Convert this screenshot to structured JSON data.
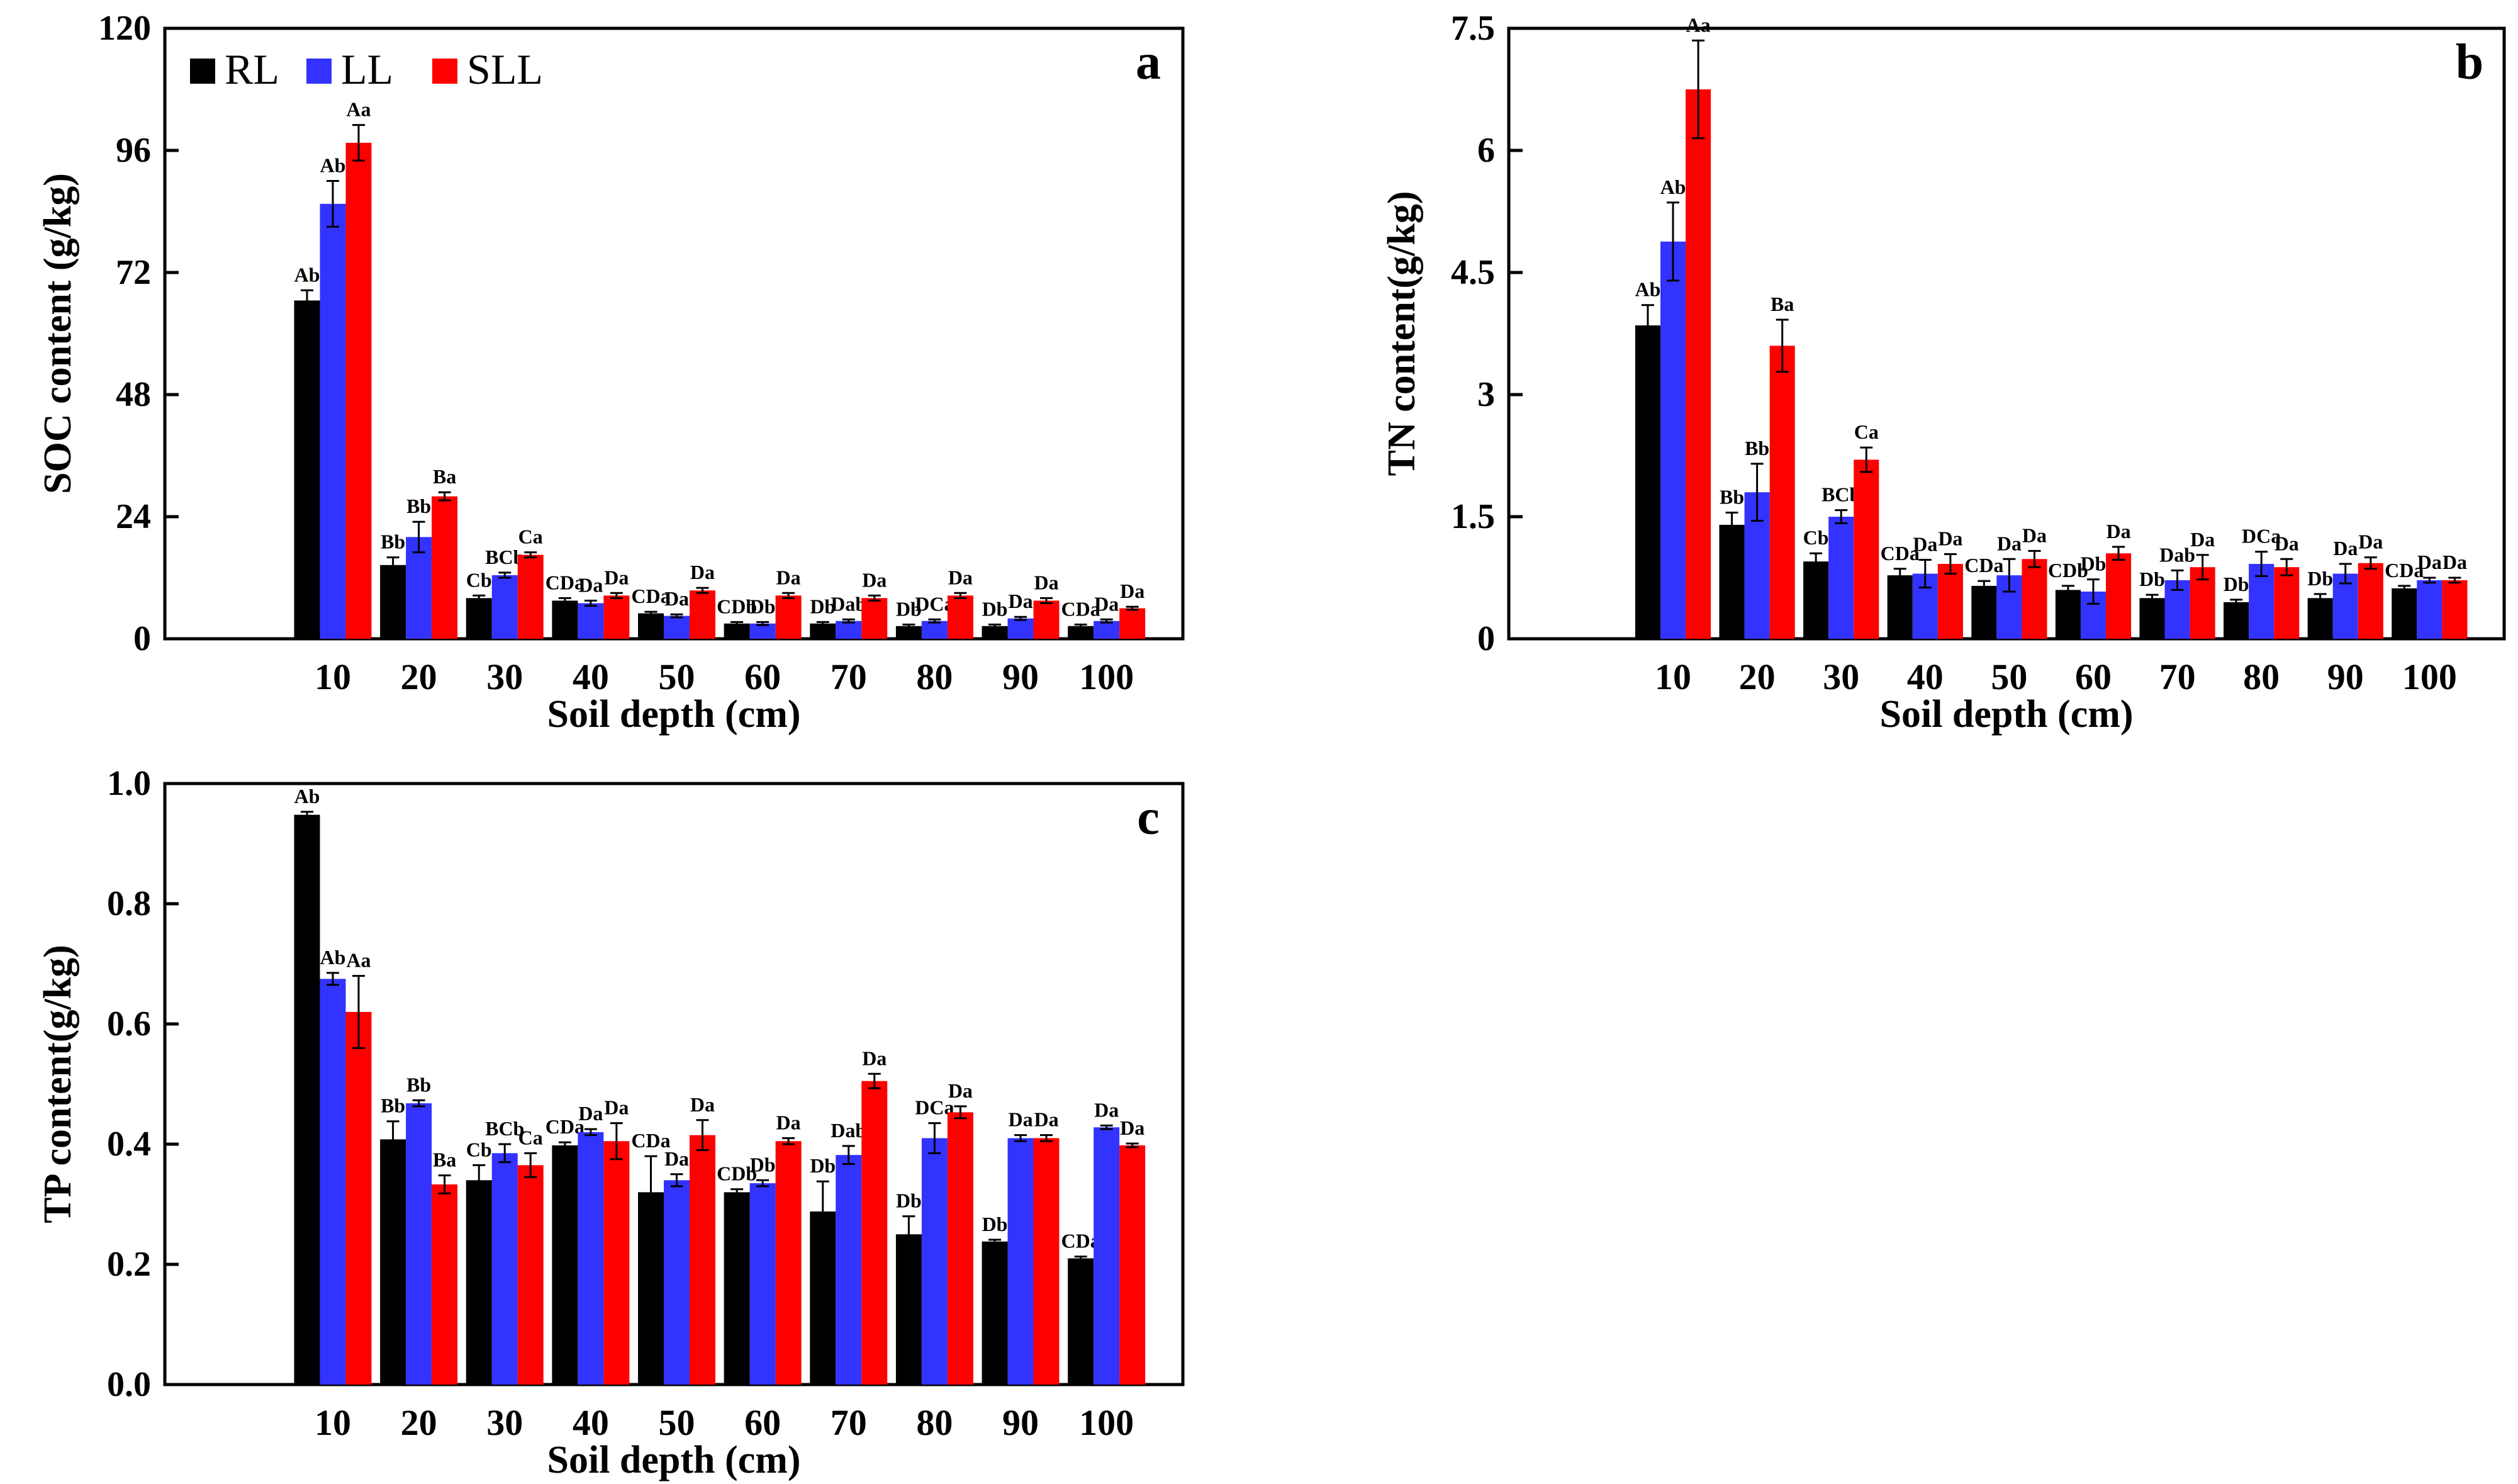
{
  "chart_data": [
    {
      "panel_label": "a",
      "type": "bar",
      "xlabel": "Soil depth (cm)",
      "ylabel": "SOC content (g/kg)",
      "categories": [
        "10",
        "20",
        "30",
        "40",
        "50",
        "60",
        "70",
        "80",
        "90",
        "100"
      ],
      "ylim": [
        0,
        120
      ],
      "yticks": [
        "0",
        "24",
        "48",
        "72",
        "96",
        "120"
      ],
      "legend": [
        "RL",
        "LL",
        "SLL"
      ],
      "series": [
        {
          "name": "RL",
          "color": "#000000",
          "values": [
            66.5,
            14.5,
            8.0,
            7.5,
            5.0,
            3.0,
            3.0,
            2.5,
            2.5,
            2.5
          ],
          "errors": [
            2.0,
            1.5,
            0.5,
            0.5,
            0.3,
            0.3,
            0.3,
            0.3,
            0.3,
            0.3
          ],
          "labels": [
            "Ab",
            "Bb",
            "Cb",
            "CDa",
            "CDa",
            "CDb",
            "Db",
            "Db",
            "Db",
            "CDa"
          ]
        },
        {
          "name": "LL",
          "color": "#3333ff",
          "values": [
            85.5,
            20.0,
            12.5,
            7.0,
            4.5,
            3.0,
            3.5,
            3.5,
            4.0,
            3.5
          ],
          "errors": [
            4.5,
            3.0,
            0.5,
            0.5,
            0.3,
            0.3,
            0.3,
            0.3,
            0.3,
            0.3
          ],
          "labels": [
            "Ab",
            "Bb",
            "BCb",
            "Da",
            "Da",
            "Db",
            "Dab",
            "DCa",
            "Da",
            "Da"
          ]
        },
        {
          "name": "SLL",
          "color": "#ff0000",
          "values": [
            97.5,
            28.0,
            16.5,
            8.5,
            9.5,
            8.5,
            8.0,
            8.5,
            7.5,
            6.0
          ],
          "errors": [
            3.5,
            0.8,
            0.5,
            0.5,
            0.5,
            0.5,
            0.5,
            0.5,
            0.5,
            0.3
          ],
          "labels": [
            "Aa",
            "Ba",
            "Ca",
            "Da",
            "Da",
            "Da",
            "Da",
            "Da",
            "Da",
            "Da"
          ]
        }
      ]
    },
    {
      "panel_label": "b",
      "type": "bar",
      "xlabel": "Soil depth (cm)",
      "ylabel": "TN content(g/kg)",
      "categories": [
        "10",
        "20",
        "30",
        "40",
        "50",
        "60",
        "70",
        "80",
        "90",
        "100"
      ],
      "ylim": [
        0,
        7.5
      ],
      "yticks": [
        "0",
        "1.5",
        "3",
        "4.5",
        "6",
        "7.5"
      ],
      "series": [
        {
          "name": "RL",
          "color": "#000000",
          "values": [
            3.85,
            1.4,
            0.95,
            0.78,
            0.65,
            0.6,
            0.5,
            0.45,
            0.5,
            0.62
          ],
          "errors": [
            0.25,
            0.15,
            0.1,
            0.08,
            0.06,
            0.05,
            0.04,
            0.03,
            0.05,
            0.03
          ],
          "labels": [
            "Ab",
            "Bb",
            "Cb",
            "CDa",
            "CDa",
            "CDb",
            "Db",
            "Db",
            "Db",
            "CDa"
          ]
        },
        {
          "name": "LL",
          "color": "#3333ff",
          "values": [
            4.88,
            1.8,
            1.5,
            0.8,
            0.78,
            0.58,
            0.72,
            0.92,
            0.8,
            0.72
          ],
          "errors": [
            0.48,
            0.35,
            0.08,
            0.17,
            0.2,
            0.15,
            0.12,
            0.15,
            0.12,
            0.03
          ],
          "labels": [
            "Ab",
            "Bb",
            "BCb",
            "Da",
            "Da",
            "Db",
            "Dab",
            "DCa",
            "Da",
            "Da"
          ]
        },
        {
          "name": "SLL",
          "color": "#ff0000",
          "values": [
            6.75,
            3.6,
            2.2,
            0.92,
            0.98,
            1.05,
            0.88,
            0.88,
            0.93,
            0.72
          ],
          "errors": [
            0.6,
            0.32,
            0.15,
            0.12,
            0.1,
            0.08,
            0.15,
            0.1,
            0.07,
            0.03
          ],
          "labels": [
            "Aa",
            "Ba",
            "Ca",
            "Da",
            "Da",
            "Da",
            "Da",
            "Da",
            "Da",
            "Da"
          ]
        }
      ]
    },
    {
      "panel_label": "c",
      "type": "bar",
      "xlabel": "Soil depth (cm)",
      "ylabel": "TP content(g/kg)",
      "categories": [
        "10",
        "20",
        "30",
        "40",
        "50",
        "60",
        "70",
        "80",
        "90",
        "100"
      ],
      "ylim": [
        0,
        1.0
      ],
      "yticks": [
        "0.0",
        "0.2",
        "0.4",
        "0.6",
        "0.8",
        "1.0"
      ],
      "series": [
        {
          "name": "RL",
          "color": "#000000",
          "values": [
            0.948,
            0.408,
            0.34,
            0.398,
            0.32,
            0.32,
            0.288,
            0.25,
            0.238,
            0.21
          ],
          "errors": [
            0.005,
            0.03,
            0.025,
            0.005,
            0.06,
            0.005,
            0.05,
            0.03,
            0.003,
            0.003
          ],
          "labels": [
            "Ab",
            "Bb",
            "Cb",
            "CDa",
            "CDa",
            "CDb",
            "Db",
            "Db",
            "Db",
            "CDa"
          ]
        },
        {
          "name": "LL",
          "color": "#3333ff",
          "values": [
            0.675,
            0.468,
            0.385,
            0.42,
            0.34,
            0.335,
            0.382,
            0.41,
            0.41,
            0.428
          ],
          "errors": [
            0.01,
            0.005,
            0.015,
            0.005,
            0.01,
            0.005,
            0.015,
            0.025,
            0.005,
            0.003
          ],
          "labels": [
            "Ab",
            "Bb",
            "BCb",
            "Da",
            "Da",
            "Db",
            "Dab",
            "DCa",
            "Da",
            "Da"
          ]
        },
        {
          "name": "SLL",
          "color": "#ff0000",
          "values": [
            0.62,
            0.333,
            0.365,
            0.405,
            0.415,
            0.405,
            0.505,
            0.453,
            0.41,
            0.398
          ],
          "errors": [
            0.06,
            0.015,
            0.02,
            0.03,
            0.025,
            0.005,
            0.012,
            0.01,
            0.005,
            0.003
          ],
          "labels": [
            "Aa",
            "Ba",
            "Ca",
            "Da",
            "Da",
            "Da",
            "Da",
            "Da",
            "Da",
            "Da"
          ]
        }
      ]
    }
  ]
}
